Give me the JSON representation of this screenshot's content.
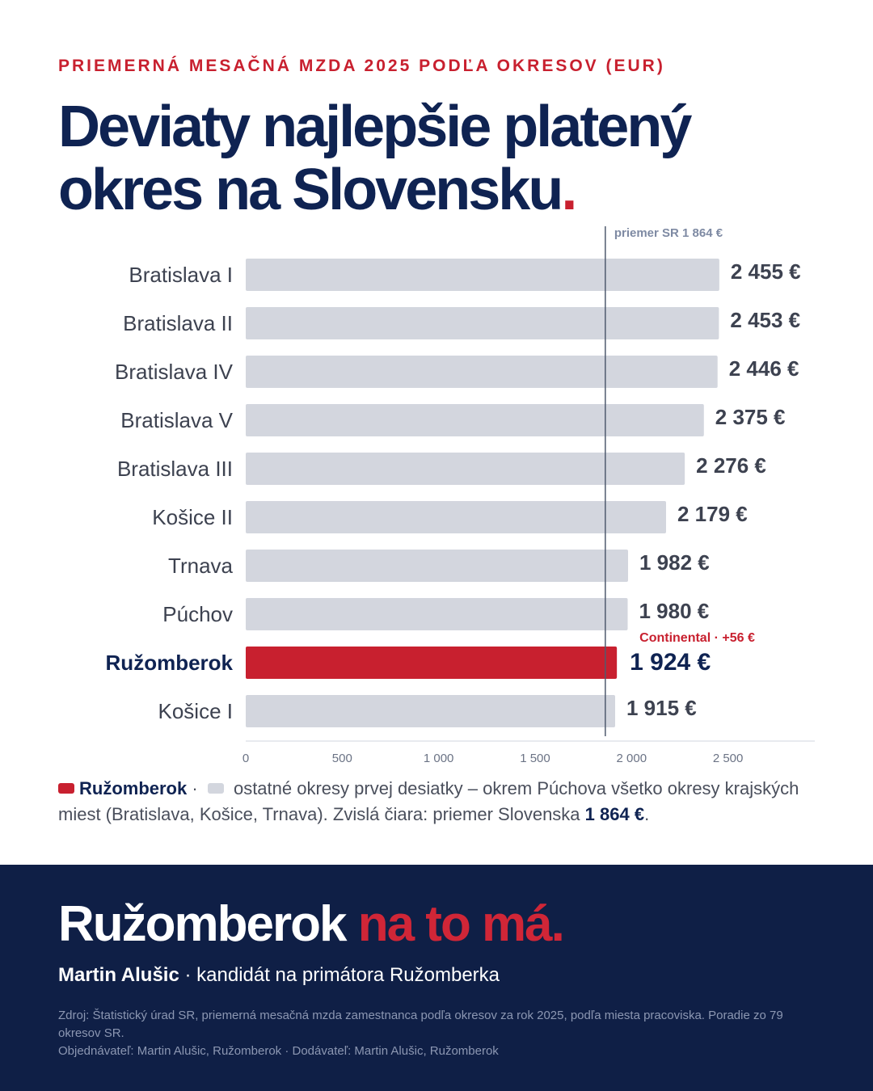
{
  "header": {
    "kicker": "PRIEMERNÁ MESAČNÁ MZDA 2025 PODĽA OKRESOV (EUR)",
    "title_line1": "Deviaty najlepšie platený",
    "title_line2": "okres na Slovensku",
    "title_end": "."
  },
  "chart_data": {
    "type": "bar",
    "orientation": "horizontal",
    "unit": "€",
    "categories": [
      "Bratislava I",
      "Bratislava II",
      "Bratislava IV",
      "Bratislava V",
      "Bratislava III",
      "Košice II",
      "Trnava",
      "Púchov",
      "Ružomberok",
      "Košice I"
    ],
    "values": [
      2455,
      2453,
      2446,
      2375,
      2276,
      2179,
      1982,
      1980,
      1924,
      1915
    ],
    "value_labels": [
      "2 455 €",
      "2 453 €",
      "2 446 €",
      "2 375 €",
      "2 276 €",
      "2 179 €",
      "1 982 €",
      "1 980 €",
      "1 924 €",
      "1 915 €"
    ],
    "highlight": "Ružomberok",
    "highlight_color": "#c8202f",
    "bar_color": "#d3d6de",
    "reference_line": {
      "value": 1864,
      "label": "priemer SR 1 864 €"
    },
    "annotation": {
      "category": "Ružomberok",
      "text": "Continental · +56 €"
    },
    "xlim": [
      0,
      2950
    ],
    "xticks": [
      0,
      500,
      1000,
      1500,
      2000,
      2500
    ],
    "xtick_labels": [
      "0",
      "500",
      "1 000",
      "1 500",
      "2 000",
      "2 500"
    ],
    "grid": false
  },
  "legend": {
    "highlight_label": "Ružomberok",
    "separator": "·",
    "text": "ostatné okresy prvej desiatky – okrem Púchova všetko okresy krajských miest (Bratislava, Košice, Trnava). Zvislá čiara: priemer Slovenska",
    "avg_value": "1 864 €",
    "end": "."
  },
  "footer": {
    "slogan_main": "Ružomberok",
    "slogan_accent": "na to má.",
    "byline_name": "Martin Alušic",
    "byline_rest": "· kandidát na primátora Ružomberka",
    "source": "Zdroj: Štatistický úrad SR, priemerná mesačná mzda zamestnanca podľa okresov za rok 2025, podľa miesta pracoviska. Poradie zo 79 okresov SR.",
    "orderer": "Objednávateľ: Martin Alušic, Ružomberok · Dodávateľ: Martin Alušic, Ružomberok"
  },
  "colors": {
    "navy": "#0f2352",
    "red": "#c8202f",
    "footer_bg": "#0f1f46"
  }
}
